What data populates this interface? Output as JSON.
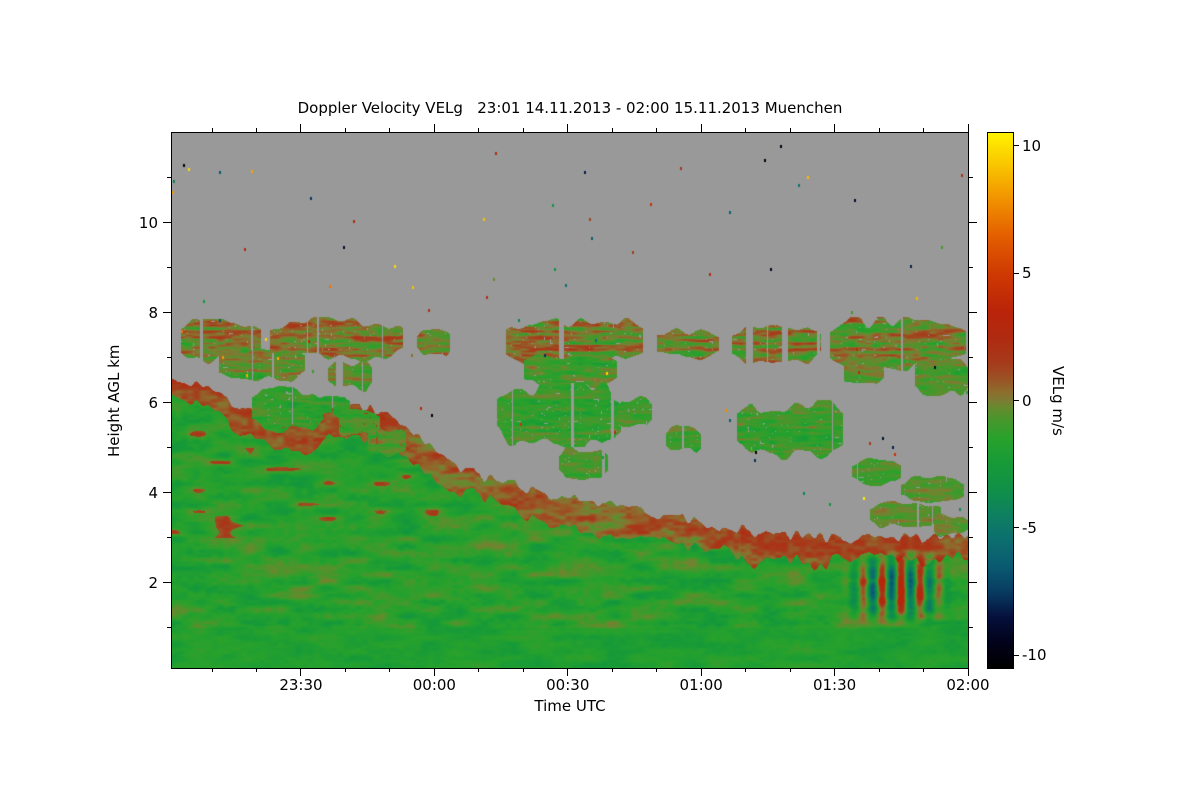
{
  "figure": {
    "title": "Doppler Velocity VELg   23:01 14.11.2013 - 02:00 15.11.2013 Muenchen",
    "x_axis_label": "Time UTC",
    "y_axis_label": "Height AGL km",
    "colorbar_label": "VELg m/s"
  },
  "chart_data": {
    "type": "heatmap",
    "title": "Doppler Velocity VELg   23:01 14.11.2013 - 02:00 15.11.2013 Muenchen",
    "xlabel": "Time UTC",
    "ylabel": "Height AGL km",
    "location": "Muenchen",
    "time_start": "23:01 14.11.2013",
    "time_end": "02:00 15.11.2013",
    "x_total_minutes": 179,
    "x_ticks": [
      {
        "minute": 29,
        "label": "23:30"
      },
      {
        "minute": 59,
        "label": "00:00"
      },
      {
        "minute": 89,
        "label": "00:30"
      },
      {
        "minute": 119,
        "label": "01:00"
      },
      {
        "minute": 149,
        "label": "01:30"
      },
      {
        "minute": 179,
        "label": "02:00"
      }
    ],
    "x_minor_ticks_minutes": [
      9,
      19,
      39,
      49,
      69,
      79,
      99,
      109,
      129,
      139,
      159,
      169
    ],
    "y_range_km": [
      0.1,
      12.0
    ],
    "y_ticks_km": [
      2,
      4,
      6,
      8,
      10
    ],
    "y_minor_ticks_km": [
      1,
      3,
      5,
      7,
      9,
      11
    ],
    "colorbar": {
      "label": "VELg m/s",
      "units": "m/s",
      "ticks": [
        10,
        5,
        0,
        -5,
        -10
      ],
      "range": [
        -10.5,
        10.5
      ]
    },
    "no_data_color": "#999999",
    "colormap_stops": [
      [
        -10.5,
        "#000000"
      ],
      [
        -9.5,
        "#02021a"
      ],
      [
        -8.5,
        "#05103c"
      ],
      [
        -7.5,
        "#083c62"
      ],
      [
        -6.5,
        "#0a5a70"
      ],
      [
        -5.5,
        "#0c6e6e"
      ],
      [
        -4.5,
        "#0e8060"
      ],
      [
        -3.5,
        "#109048"
      ],
      [
        -2.5,
        "#169a38"
      ],
      [
        -1.5,
        "#28a22c"
      ],
      [
        -0.8,
        "#46972c"
      ],
      [
        -0.3,
        "#648b2e"
      ],
      [
        0,
        "#7c7c34"
      ],
      [
        0.4,
        "#8f6a2c"
      ],
      [
        0.9,
        "#9c5024"
      ],
      [
        1.5,
        "#a63a1a"
      ],
      [
        2.5,
        "#b02a10"
      ],
      [
        3.5,
        "#ba240a"
      ],
      [
        5,
        "#cf3a02"
      ],
      [
        6.5,
        "#e46000"
      ],
      [
        8,
        "#f29600"
      ],
      [
        9.2,
        "#f9c400"
      ],
      [
        10.5,
        "#fff200"
      ]
    ],
    "boundary_layer_top_profile": [
      [
        0,
        6.6
      ],
      [
        6,
        6.45
      ],
      [
        12,
        6.1
      ],
      [
        18,
        5.75
      ],
      [
        24,
        5.5
      ],
      [
        30,
        5.6
      ],
      [
        36,
        5.85
      ],
      [
        42,
        5.95
      ],
      [
        48,
        5.75
      ],
      [
        53,
        5.45
      ],
      [
        57,
        5.1
      ],
      [
        60,
        4.85
      ],
      [
        66,
        4.5
      ],
      [
        72,
        4.3
      ],
      [
        80,
        4.1
      ],
      [
        88,
        3.9
      ],
      [
        96,
        3.75
      ],
      [
        104,
        3.6
      ],
      [
        112,
        3.45
      ],
      [
        120,
        3.3
      ],
      [
        130,
        3.15
      ],
      [
        140,
        3.05
      ],
      [
        150,
        3.0
      ],
      [
        160,
        2.95
      ],
      [
        170,
        3.0
      ],
      [
        179,
        3.05
      ]
    ],
    "boundary_layer": {
      "interior_velocity_ms": -1.5,
      "top_fringe_velocity_ms": 0.7,
      "fringe_thickness_km": 0.5
    },
    "wave_feature": {
      "t0": 150,
      "t1": 176,
      "h0": 1.05,
      "h1": 2.75,
      "period_min": 4.3,
      "amplitude_ms": 3.4
    },
    "cloud_patches": [
      {
        "t0": 2,
        "t1": 21,
        "h0": 7.0,
        "h1": 7.75,
        "v": 0.1,
        "a": 2.6
      },
      {
        "t0": 10,
        "t1": 30,
        "h0": 6.55,
        "h1": 7.15,
        "v": -0.5,
        "a": 2.2
      },
      {
        "t0": 22,
        "t1": 52,
        "h0": 7.05,
        "h1": 7.8,
        "v": 0.2,
        "a": 2.6
      },
      {
        "t0": 35,
        "t1": 45,
        "h0": 6.35,
        "h1": 6.9,
        "v": -0.6,
        "a": 1.8
      },
      {
        "t0": 55,
        "t1": 63,
        "h0": 7.15,
        "h1": 7.6,
        "v": -0.3,
        "a": 2.2
      },
      {
        "t0": 75,
        "t1": 106,
        "h0": 6.95,
        "h1": 7.8,
        "v": 0.1,
        "a": 2.6
      },
      {
        "t0": 79,
        "t1": 100,
        "h0": 6.45,
        "h1": 7.05,
        "v": -0.8,
        "a": 2.0
      },
      {
        "t0": 109,
        "t1": 123,
        "h0": 7.05,
        "h1": 7.6,
        "v": -0.2,
        "a": 2.4
      },
      {
        "t0": 126,
        "t1": 146,
        "h0": 6.95,
        "h1": 7.7,
        "v": 0.0,
        "a": 2.4
      },
      {
        "t0": 148,
        "t1": 179,
        "h0": 6.85,
        "h1": 7.8,
        "v": -0.1,
        "a": 2.6
      },
      {
        "t0": 167,
        "t1": 179,
        "h0": 6.25,
        "h1": 6.95,
        "v": -0.7,
        "a": 1.8
      },
      {
        "t0": 150,
        "t1": 160,
        "h0": 6.5,
        "h1": 6.95,
        "v": -0.5,
        "a": 1.8
      },
      {
        "t0": 18,
        "t1": 34,
        "h0": 5.45,
        "h1": 6.3,
        "v": -1.3,
        "a": 1.8
      },
      {
        "t0": 31,
        "t1": 40,
        "h0": 5.75,
        "h1": 6.15,
        "v": -1.1,
        "a": 1.6
      },
      {
        "t0": 37,
        "t1": 47,
        "h0": 5.3,
        "h1": 5.8,
        "v": -0.9,
        "a": 1.6
      },
      {
        "t0": 44,
        "t1": 53,
        "h0": 4.9,
        "h1": 5.4,
        "v": -0.8,
        "a": 1.6
      },
      {
        "t0": 73,
        "t1": 101,
        "h0": 5.15,
        "h1": 6.35,
        "v": -1.2,
        "a": 1.8
      },
      {
        "t0": 87,
        "t1": 98,
        "h0": 4.4,
        "h1": 4.95,
        "v": -1.1,
        "a": 1.6
      },
      {
        "t0": 100,
        "t1": 108,
        "h0": 5.55,
        "h1": 6.05,
        "v": -0.9,
        "a": 1.6
      },
      {
        "t0": 111,
        "t1": 119,
        "h0": 4.95,
        "h1": 5.45,
        "v": -1.0,
        "a": 1.6
      },
      {
        "t0": 127,
        "t1": 151,
        "h0": 4.85,
        "h1": 5.95,
        "v": -1.1,
        "a": 1.8
      },
      {
        "t0": 153,
        "t1": 164,
        "h0": 4.25,
        "h1": 4.7,
        "v": -0.8,
        "a": 1.4
      },
      {
        "t0": 157,
        "t1": 173,
        "h0": 3.3,
        "h1": 3.75,
        "v": -0.5,
        "a": 1.4
      },
      {
        "t0": 164,
        "t1": 178,
        "h0": 3.85,
        "h1": 4.3,
        "v": -0.6,
        "a": 1.4
      },
      {
        "t0": 171,
        "t1": 179,
        "h0": 3.1,
        "h1": 3.5,
        "v": -0.3,
        "a": 1.4
      }
    ],
    "noise_speckles": {
      "count": 75,
      "value_range": [
        -10.5,
        10.5
      ]
    }
  }
}
